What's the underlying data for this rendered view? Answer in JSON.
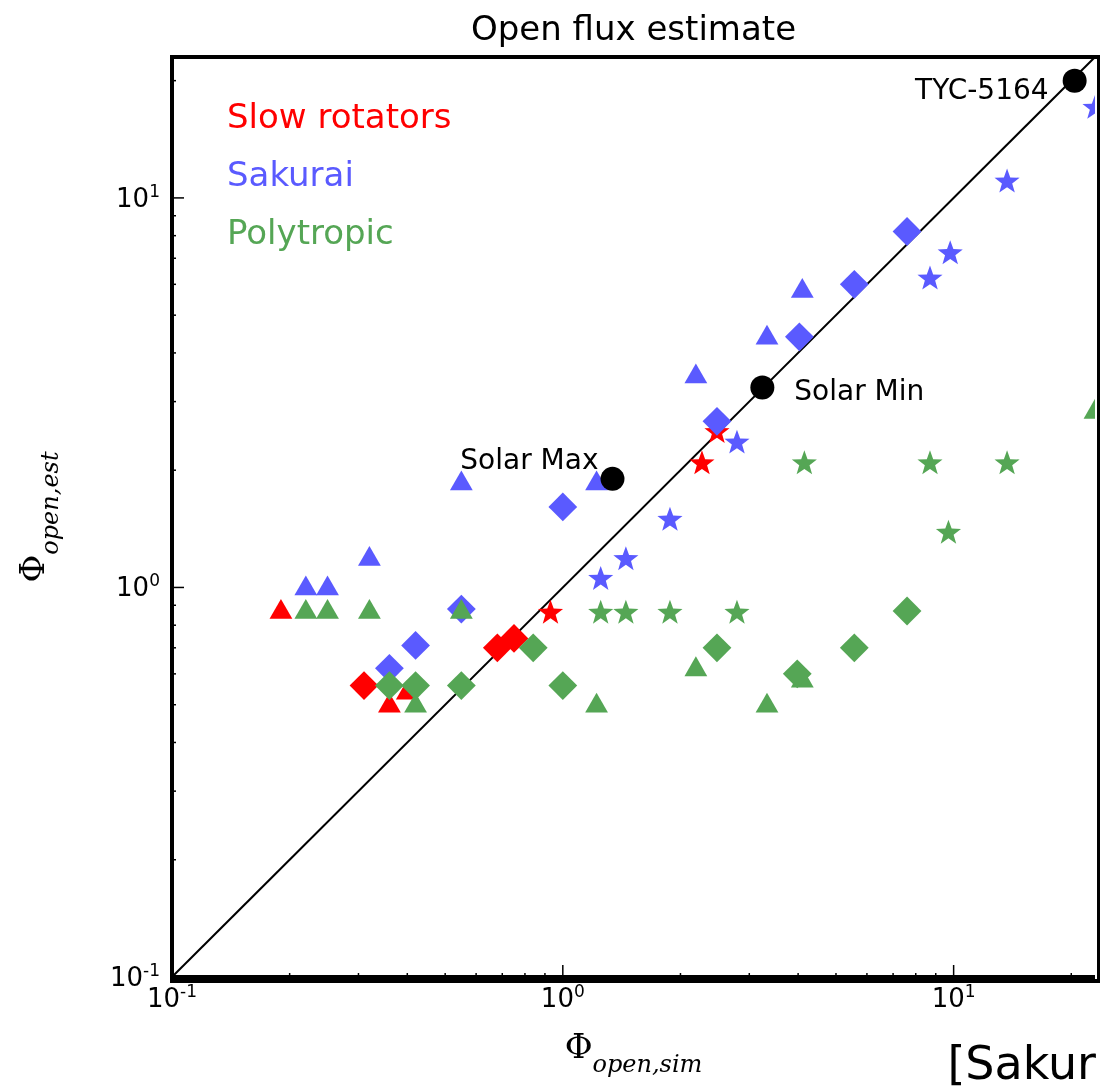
{
  "chart_data": {
    "type": "scatter",
    "title": "Open flux estimate",
    "xlabel": "Φ$_{open,sim}$",
    "ylabel": "Φ$_{open,est}$",
    "log": "xy",
    "legend": "top left",
    "xlim": [
      0.1,
      23
    ],
    "ylim": [
      0.1,
      23
    ],
    "xticks": [
      {
        "value": 0.1,
        "label": "10$^{-1}$"
      },
      {
        "value": 0.2,
        "label": null
      },
      {
        "value": 0.3,
        "label": null
      },
      {
        "value": 0.4,
        "label": null
      },
      {
        "value": 0.5,
        "label": null
      },
      {
        "value": 0.6,
        "label": null
      },
      {
        "value": 0.7,
        "label": null
      },
      {
        "value": 0.8,
        "label": null
      },
      {
        "value": 0.9,
        "label": null
      },
      {
        "value": 1,
        "label": "10$^{0}$"
      },
      {
        "value": 2,
        "label": null
      },
      {
        "value": 3,
        "label": null
      },
      {
        "value": 4,
        "label": null
      },
      {
        "value": 5,
        "label": null
      },
      {
        "value": 6,
        "label": null
      },
      {
        "value": 7,
        "label": null
      },
      {
        "value": 8,
        "label": null
      },
      {
        "value": 9,
        "label": null
      },
      {
        "value": 10,
        "label": "10$^{1}$"
      },
      {
        "value": 20,
        "label": null
      }
    ],
    "yticks": [
      {
        "value": 0.1,
        "label": "10$^{-1}$"
      },
      {
        "value": 0.2,
        "label": null
      },
      {
        "value": 0.3,
        "label": null
      },
      {
        "value": 0.4,
        "label": null
      },
      {
        "value": 0.5,
        "label": null
      },
      {
        "value": 0.6,
        "label": null
      },
      {
        "value": 0.7,
        "label": null
      },
      {
        "value": 0.8,
        "label": null
      },
      {
        "value": 0.9,
        "label": null
      },
      {
        "value": 1,
        "label": "10$^{0}$"
      },
      {
        "value": 2,
        "label": null
      },
      {
        "value": 3,
        "label": null
      },
      {
        "value": 4,
        "label": null
      },
      {
        "value": 5,
        "label": null
      },
      {
        "value": 6,
        "label": null
      },
      {
        "value": 7,
        "label": null
      },
      {
        "value": 8,
        "label": null
      },
      {
        "value": 9,
        "label": null
      },
      {
        "value": 10,
        "label": "10$^{1}$"
      },
      {
        "value": 20,
        "label": null
      }
    ],
    "series": [
      {
        "type": "line",
        "color": "#000000",
        "x": [
          0.1,
          23
        ],
        "values": [
          0.1,
          23
        ]
      },
      {
        "name": "Slow rotators",
        "color": "#ff0000",
        "marker": "triangle",
        "x": [
          0.19,
          0.36,
          0.4
        ],
        "values": [
          0.87,
          0.5,
          0.54
        ]
      },
      {
        "color": "#ff0000",
        "marker": "diamond",
        "x": [
          0.31,
          0.68,
          0.75
        ],
        "values": [
          0.56,
          0.7,
          0.74
        ]
      },
      {
        "color": "#ff0000",
        "marker": "star",
        "x": [
          0.93,
          2.27,
          2.48
        ],
        "values": [
          0.86,
          2.08,
          2.5
        ]
      },
      {
        "name": "Sakurai",
        "color": "#5a5aff",
        "marker": "triangle",
        "x": [
          0.22,
          0.25,
          0.32,
          0.55,
          1.22,
          2.19,
          3.33,
          4.1
        ],
        "values": [
          1.0,
          1.0,
          1.19,
          1.86,
          1.86,
          3.5,
          4.4,
          5.8
        ]
      },
      {
        "color": "#5a5aff",
        "marker": "diamond",
        "x": [
          0.36,
          0.42,
          0.55,
          1.0,
          2.48,
          4.03,
          5.57,
          7.6
        ],
        "values": [
          0.62,
          0.71,
          0.88,
          1.61,
          2.67,
          4.4,
          6.0,
          8.2
        ]
      },
      {
        "color": "#5a5aff",
        "marker": "star",
        "x": [
          1.25,
          1.45,
          1.88,
          2.79,
          8.7,
          9.8,
          13.7,
          23
        ],
        "values": [
          1.05,
          1.18,
          1.49,
          2.35,
          6.2,
          7.2,
          11,
          17
        ]
      },
      {
        "name": "Polytropic",
        "color": "#55a655",
        "marker": "triangle",
        "x": [
          0.22,
          0.25,
          0.32,
          0.55,
          0.42,
          1.22,
          2.19,
          3.33,
          4.1,
          23
        ],
        "values": [
          0.87,
          0.87,
          0.87,
          0.87,
          0.5,
          0.5,
          0.62,
          0.5,
          0.58,
          2.84
        ]
      },
      {
        "color": "#55a655",
        "marker": "diamond",
        "x": [
          0.36,
          0.42,
          0.55,
          0.84,
          1.0,
          2.48,
          3.98,
          5.57,
          7.6
        ],
        "values": [
          0.56,
          0.56,
          0.56,
          0.7,
          0.56,
          0.7,
          0.6,
          0.7,
          0.87
        ]
      },
      {
        "color": "#55a655",
        "marker": "star",
        "x": [
          1.25,
          1.45,
          1.88,
          2.79,
          4.15,
          8.7,
          13.7,
          9.7
        ],
        "values": [
          0.86,
          0.86,
          0.86,
          0.86,
          2.08,
          2.08,
          2.08,
          1.38
        ]
      },
      {
        "color": "#000000",
        "marker": "circle",
        "x": [
          1.34,
          3.24,
          20.4
        ],
        "values": [
          1.9,
          3.26,
          20
        ]
      }
    ],
    "annotations": [
      {
        "text": "Solar Max",
        "x": 1.34,
        "y": 1.9
      },
      {
        "text": "Solar Min",
        "x": 3.24,
        "y": 3.26
      },
      {
        "text": "TYC-5164",
        "x": 20.4,
        "y": 20
      },
      "[Sakur"
    ]
  }
}
